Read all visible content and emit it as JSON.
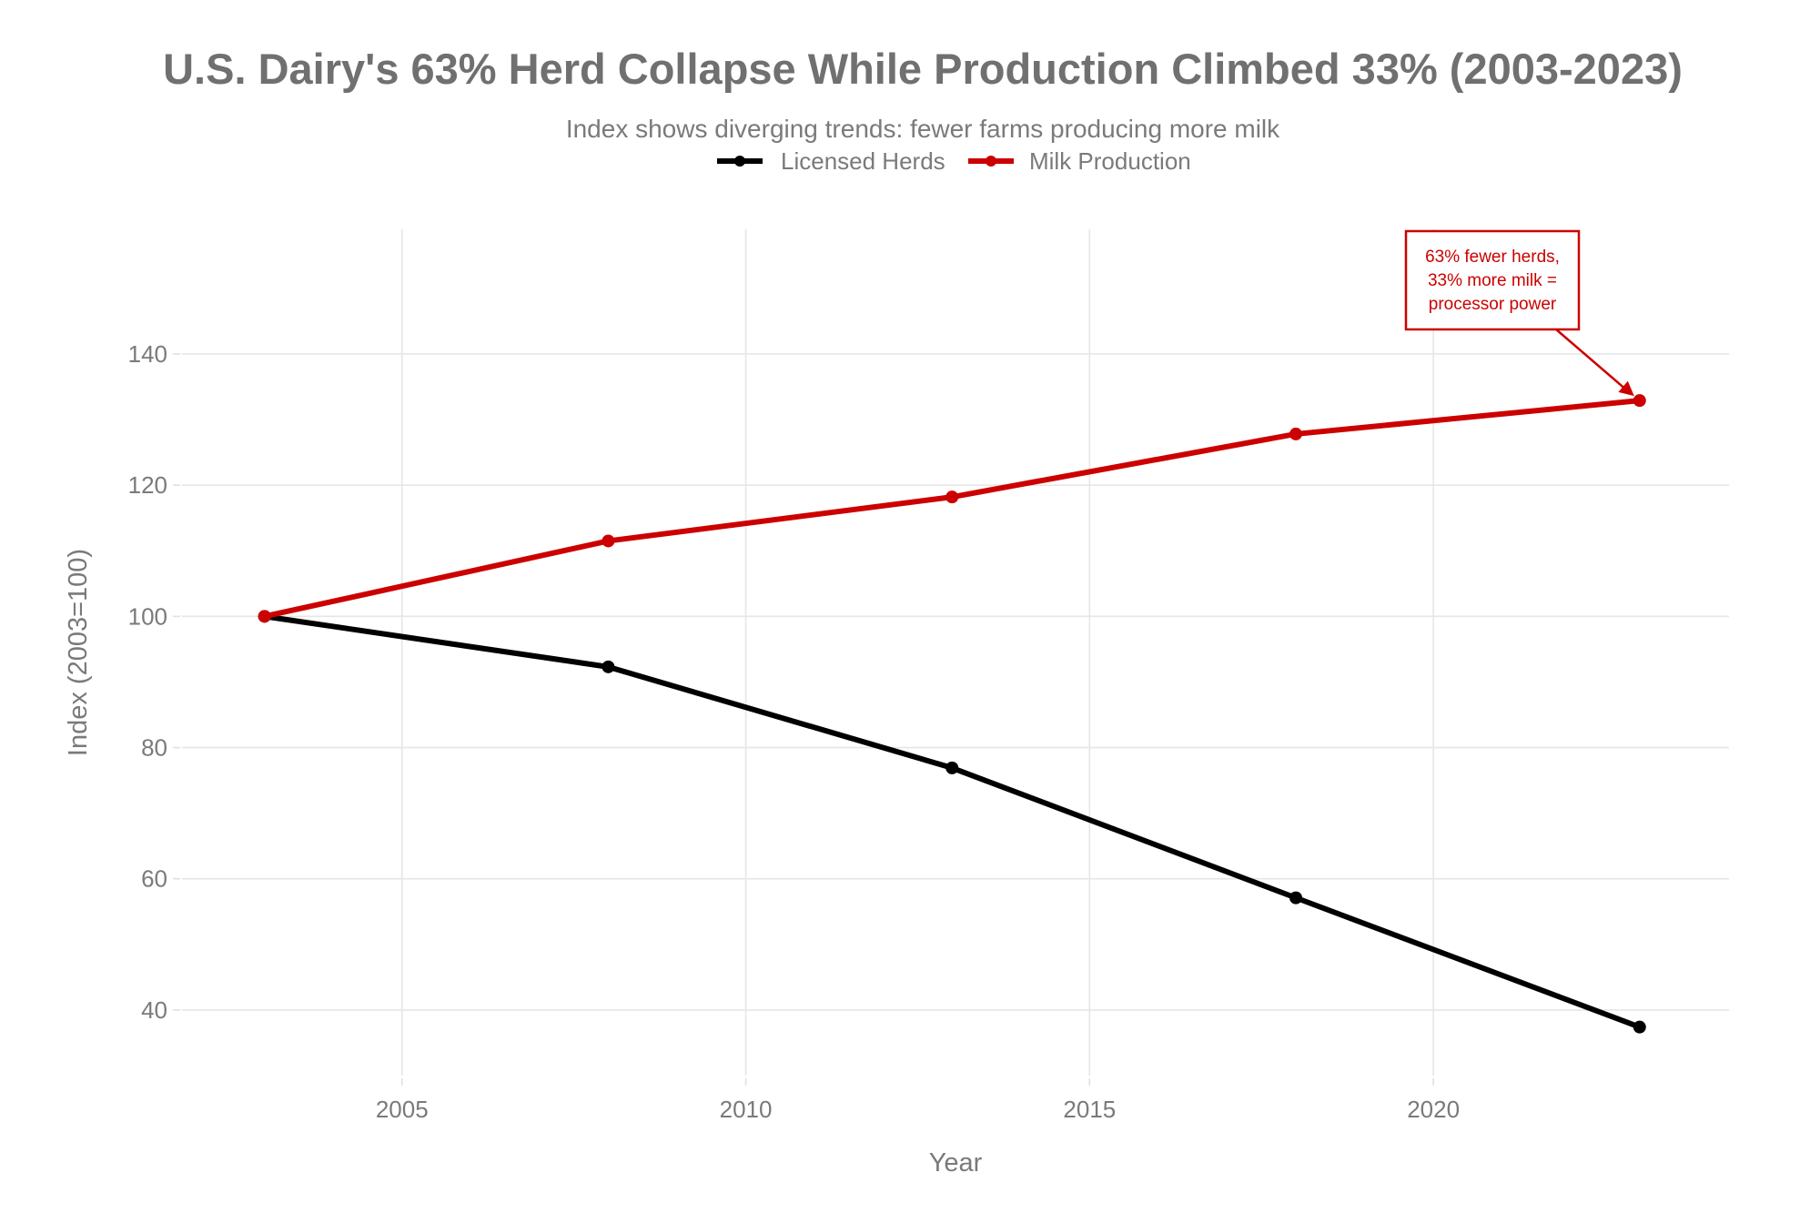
{
  "chart_data": {
    "type": "line",
    "title": "U.S. Dairy's 63% Herd Collapse While Production Climbed 33% (2003-2023)",
    "subtitle": "Index shows diverging trends: fewer farms producing more milk",
    "xlabel": "Year",
    "ylabel": "Index (2003=100)",
    "x": [
      2003,
      2008,
      2013,
      2018,
      2023
    ],
    "xlim": [
      2001.8,
      2024.3
    ],
    "ylim": [
      30,
      159
    ],
    "xticks": [
      2005,
      2010,
      2015,
      2020
    ],
    "xtick_labels": [
      "2005",
      "2010",
      "2015",
      "2020"
    ],
    "yticks": [
      40,
      60,
      80,
      100,
      120,
      140
    ],
    "ytick_labels": [
      "40",
      "60",
      "80",
      "100",
      "120",
      "140"
    ],
    "grid": true,
    "legend_position": "top-center",
    "series": [
      {
        "name": "Licensed Herds",
        "color": "#000000",
        "values": [
          100,
          92.3,
          76.9,
          57.1,
          37.4
        ]
      },
      {
        "name": "Milk Production",
        "color": "#cc0000",
        "values": [
          100,
          111.5,
          118.2,
          127.8,
          132.9
        ]
      }
    ],
    "annotations": [
      {
        "lines": [
          "63% fewer herds,",
          "33% more milk =",
          "processor power"
        ],
        "color": "#cc0000",
        "points_to": {
          "x": 2023,
          "y": 132.9,
          "series": "Milk Production"
        }
      }
    ]
  }
}
